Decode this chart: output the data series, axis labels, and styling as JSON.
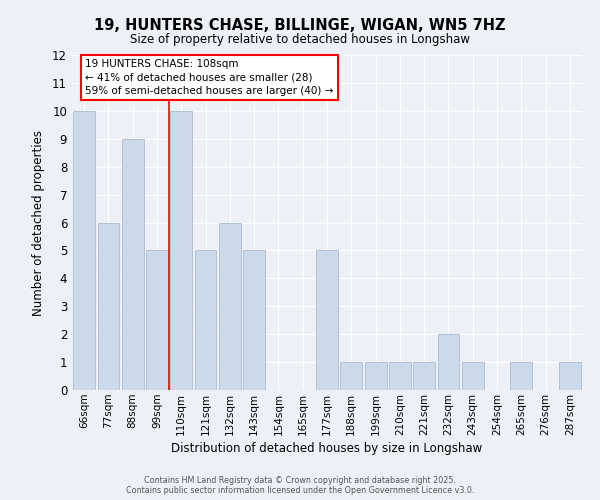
{
  "title": "19, HUNTERS CHASE, BILLINGE, WIGAN, WN5 7HZ",
  "subtitle": "Size of property relative to detached houses in Longshaw",
  "xlabel": "Distribution of detached houses by size in Longshaw",
  "ylabel": "Number of detached properties",
  "bar_color": "#ccd9e8",
  "bar_edge_color": "#aabcd0",
  "categories": [
    "66sqm",
    "77sqm",
    "88sqm",
    "99sqm",
    "110sqm",
    "121sqm",
    "132sqm",
    "143sqm",
    "154sqm",
    "165sqm",
    "177sqm",
    "188sqm",
    "199sqm",
    "210sqm",
    "221sqm",
    "232sqm",
    "243sqm",
    "254sqm",
    "265sqm",
    "276sqm",
    "287sqm"
  ],
  "values": [
    10,
    6,
    9,
    5,
    10,
    5,
    6,
    5,
    0,
    0,
    5,
    1,
    1,
    1,
    1,
    2,
    1,
    0,
    1,
    0,
    1
  ],
  "ylim": [
    0,
    12
  ],
  "yticks": [
    0,
    1,
    2,
    3,
    4,
    5,
    6,
    7,
    8,
    9,
    10,
    11,
    12
  ],
  "red_line_index": 4,
  "annotation_text": "19 HUNTERS CHASE: 108sqm\n← 41% of detached houses are smaller (28)\n59% of semi-detached houses are larger (40) →",
  "footer_line1": "Contains HM Land Registry data © Crown copyright and database right 2025.",
  "footer_line2": "Contains public sector information licensed under the Open Government Licence v3.0.",
  "background_color": "#edf1f7",
  "grid_color": "#ffffff"
}
